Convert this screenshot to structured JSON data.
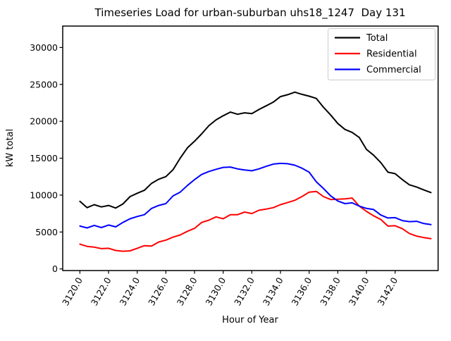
{
  "chart_data": {
    "type": "line",
    "title": "Timeseries Load for urban-suburban uhs18_1247  Day 131",
    "xlabel": "Hour of Year",
    "ylabel": "kW total",
    "grid": false,
    "legend_position": "upper right",
    "x_start": 3120.0,
    "x_step": 0.5,
    "xlim": [
      3118.8,
      3145.0
    ],
    "ylim": [
      -220,
      32900
    ],
    "x_tick_rotation": 60,
    "x_ticks": [
      3120.0,
      3122.0,
      3124.0,
      3126.0,
      3128.0,
      3130.0,
      3132.0,
      3134.0,
      3136.0,
      3138.0,
      3140.0,
      3142.0
    ],
    "x_tick_labels": [
      "3120.0",
      "3122.0",
      "3124.0",
      "3126.0",
      "3128.0",
      "3130.0",
      "3132.0",
      "3134.0",
      "3136.0",
      "3138.0",
      "3140.0",
      "3142.0"
    ],
    "y_ticks": [
      0,
      5000,
      10000,
      15000,
      20000,
      25000,
      30000
    ],
    "y_tick_labels": [
      "0",
      "5000",
      "10000",
      "15000",
      "20000",
      "25000",
      "30000"
    ],
    "series": [
      {
        "name": "Total",
        "color": "#000000",
        "values": [
          9150,
          8300,
          8700,
          8400,
          8600,
          8250,
          8800,
          9800,
          10250,
          10650,
          11600,
          12150,
          12500,
          13450,
          15000,
          16400,
          17300,
          18300,
          19400,
          20200,
          20750,
          21250,
          20950,
          21150,
          21050,
          21600,
          22100,
          22600,
          23350,
          23600,
          23950,
          23650,
          23400,
          23100,
          21900,
          20850,
          19700,
          18900,
          18500,
          17800,
          16200,
          15400,
          14400,
          13100,
          12900,
          12100,
          11400,
          11100,
          10700,
          10350
        ]
      },
      {
        "name": "Residential",
        "color": "#ff0000",
        "values": [
          3350,
          3050,
          2950,
          2750,
          2800,
          2500,
          2400,
          2450,
          2800,
          3150,
          3100,
          3650,
          3900,
          4300,
          4600,
          5100,
          5500,
          6300,
          6600,
          7050,
          6800,
          7350,
          7350,
          7700,
          7500,
          7950,
          8100,
          8300,
          8700,
          9000,
          9300,
          9800,
          10400,
          10500,
          9800,
          9400,
          9450,
          9500,
          9600,
          8500,
          7800,
          7200,
          6700,
          5800,
          5850,
          5450,
          4800,
          4450,
          4250,
          4100
        ]
      },
      {
        "name": "Commercial",
        "color": "#0000ff",
        "values": [
          5800,
          5550,
          5900,
          5600,
          5950,
          5700,
          6300,
          6800,
          7100,
          7350,
          8200,
          8600,
          8850,
          9900,
          10400,
          11300,
          12100,
          12800,
          13200,
          13500,
          13750,
          13800,
          13550,
          13400,
          13300,
          13550,
          13900,
          14200,
          14300,
          14250,
          14050,
          13650,
          13100,
          11800,
          10900,
          9900,
          9200,
          8850,
          8950,
          8500,
          8200,
          8050,
          7300,
          6900,
          6950,
          6550,
          6400,
          6450,
          6150,
          6000
        ]
      }
    ]
  }
}
